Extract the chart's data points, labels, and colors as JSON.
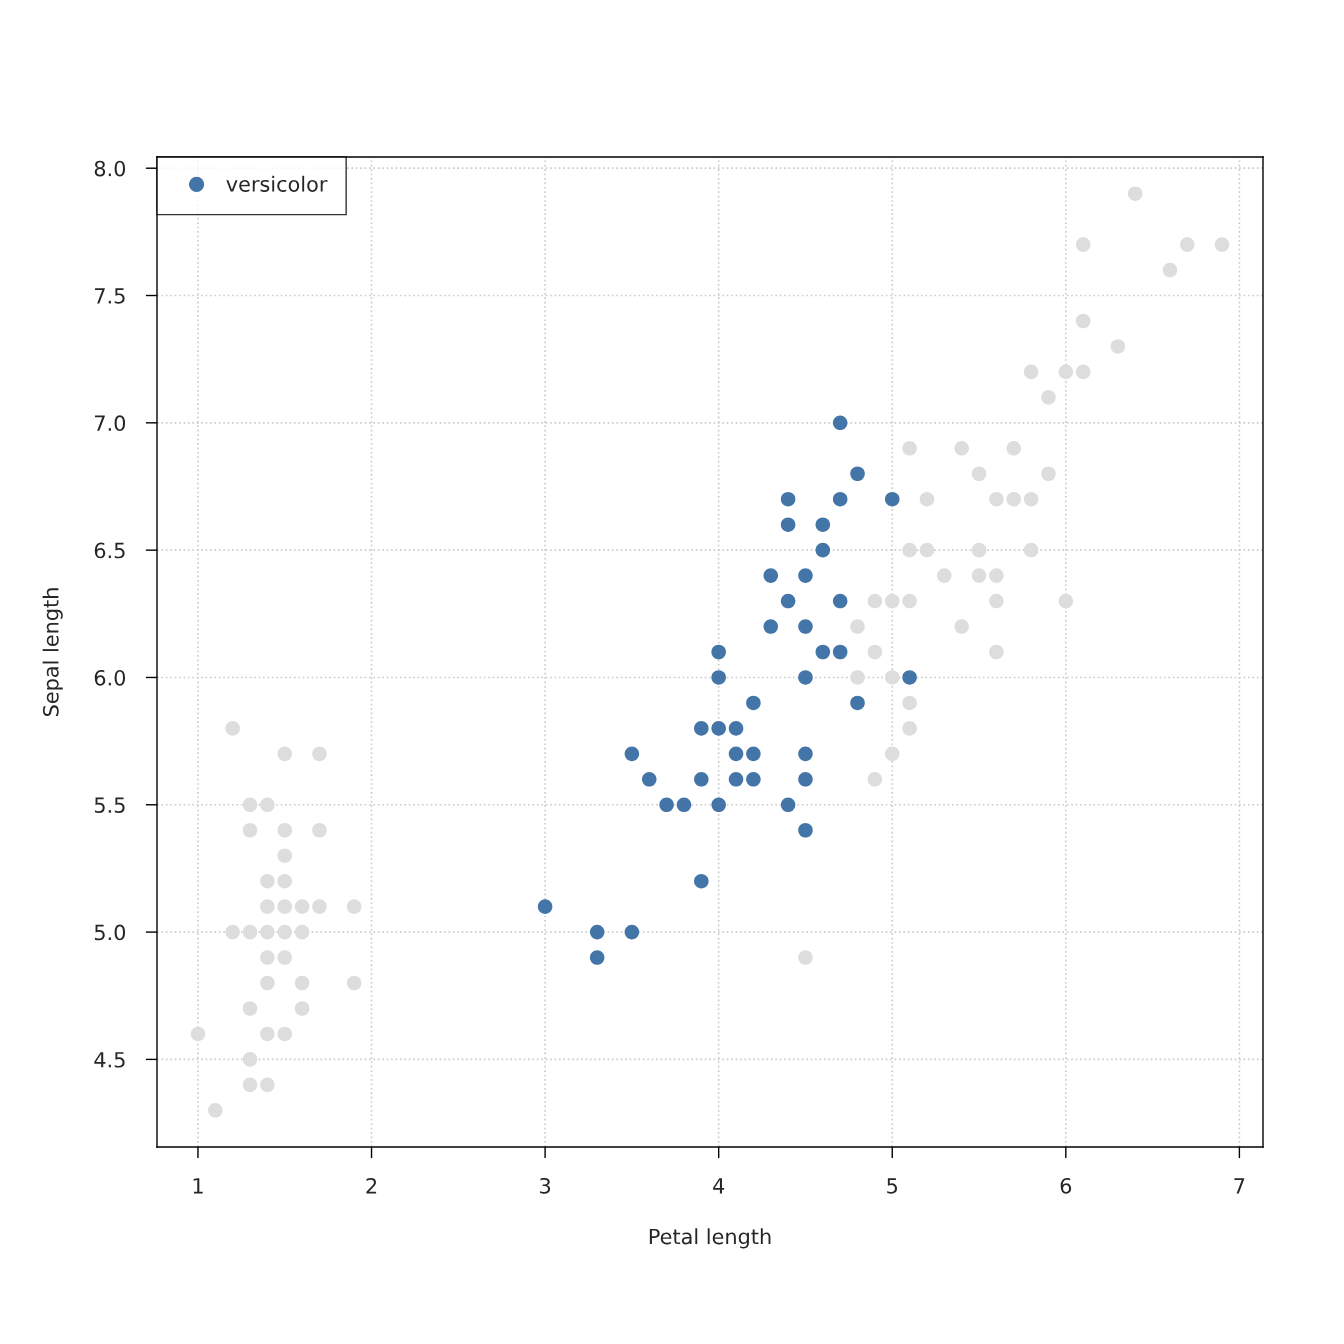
{
  "chart_data": {
    "type": "scatter",
    "xlabel": "Petal length",
    "ylabel": "Sepal length",
    "xlim": [
      0.764,
      7.136
    ],
    "ylim": [
      4.156,
      8.044
    ],
    "xticks": [
      1,
      2,
      3,
      4,
      5,
      6,
      7
    ],
    "yticks": [
      {
        "value": 4.5,
        "label": "4.5"
      },
      {
        "value": 5.0,
        "label": "5.0"
      },
      {
        "value": 5.5,
        "label": "5.5"
      },
      {
        "value": 6.0,
        "label": "6.0"
      },
      {
        "value": 6.5,
        "label": "6.5"
      },
      {
        "value": 7.0,
        "label": "7.0"
      },
      {
        "value": 7.5,
        "label": "7.5"
      },
      {
        "value": 8.0,
        "label": "8.0"
      }
    ],
    "grid": true,
    "legend": "top left",
    "marker": "circle",
    "series": [
      {
        "name": "versicolor",
        "color": "#4475a8",
        "x": [
          4.7,
          4.5,
          4.0,
          4.6,
          4.5,
          4.7,
          3.3,
          4.6,
          3.9,
          3.5,
          4.2,
          4.0,
          4.7,
          3.6,
          4.4,
          4.5,
          4.1,
          4.5,
          3.9,
          4.8,
          4.0,
          4.3,
          4.4,
          4.8,
          5.0,
          4.5,
          3.5,
          3.8,
          3.7,
          3.9,
          5.1,
          4.5,
          4.7,
          4.4,
          4.1,
          4.4,
          4.6,
          4.0,
          3.3,
          4.2,
          4.2,
          4.3,
          3.0,
          4.1
        ],
        "values": [
          7.0,
          6.4,
          5.5,
          6.5,
          5.7,
          6.3,
          4.9,
          6.6,
          5.2,
          5.0,
          5.9,
          6.0,
          6.1,
          5.6,
          6.7,
          5.6,
          5.8,
          6.2,
          5.6,
          5.9,
          6.1,
          6.4,
          6.6,
          6.8,
          6.7,
          6.0,
          5.7,
          5.5,
          5.5,
          5.8,
          6.0,
          5.4,
          6.7,
          6.3,
          5.6,
          5.5,
          6.1,
          5.8,
          5.0,
          5.6,
          5.7,
          6.2,
          5.1,
          5.7
        ]
      },
      {
        "color": "#dddddd",
        "x": [
          1.0,
          1.1,
          1.2,
          1.2,
          1.3,
          1.3,
          1.3,
          1.3,
          1.3,
          1.3,
          1.4,
          1.4,
          1.4,
          1.4,
          1.4,
          1.4,
          1.4,
          1.4,
          1.5,
          1.5,
          1.5,
          1.5,
          1.5,
          1.5,
          1.5,
          1.5,
          1.6,
          1.6,
          1.6,
          1.6,
          1.7,
          1.7,
          1.7,
          1.9,
          1.9,
          6.0,
          5.1,
          5.9,
          5.6,
          5.8,
          6.6,
          4.5,
          6.3,
          5.8,
          6.1,
          5.1,
          5.3,
          5.5,
          5.0,
          5.5,
          6.7,
          6.9,
          5.0,
          5.7,
          4.9,
          4.9,
          5.7,
          6.0,
          4.8,
          4.9,
          5.6,
          5.8,
          6.1,
          6.4,
          5.1,
          5.6,
          6.1,
          5.5,
          4.8,
          5.4,
          5.6,
          5.1,
          5.9,
          5.2,
          5.0,
          5.2,
          5.4,
          5.1
        ],
        "values": [
          4.6,
          4.3,
          5.8,
          5.0,
          5.5,
          5.4,
          5.0,
          4.7,
          4.5,
          4.4,
          5.5,
          5.2,
          5.1,
          5.0,
          4.9,
          4.8,
          4.6,
          4.4,
          5.7,
          5.4,
          5.3,
          5.2,
          5.1,
          5.0,
          4.9,
          4.6,
          5.1,
          5.0,
          4.8,
          4.7,
          5.7,
          5.4,
          5.1,
          5.1,
          4.8,
          6.3,
          5.8,
          7.1,
          6.3,
          6.5,
          7.6,
          4.9,
          7.3,
          6.7,
          7.2,
          6.5,
          6.4,
          6.8,
          5.7,
          6.5,
          7.7,
          7.7,
          6.0,
          6.9,
          5.6,
          6.3,
          6.7,
          7.2,
          6.2,
          6.1,
          6.4,
          7.2,
          7.4,
          7.9,
          6.3,
          6.1,
          7.7,
          6.4,
          6.0,
          6.9,
          6.7,
          6.9,
          6.8,
          6.7,
          6.3,
          6.5,
          6.2,
          5.9
        ]
      }
    ]
  }
}
